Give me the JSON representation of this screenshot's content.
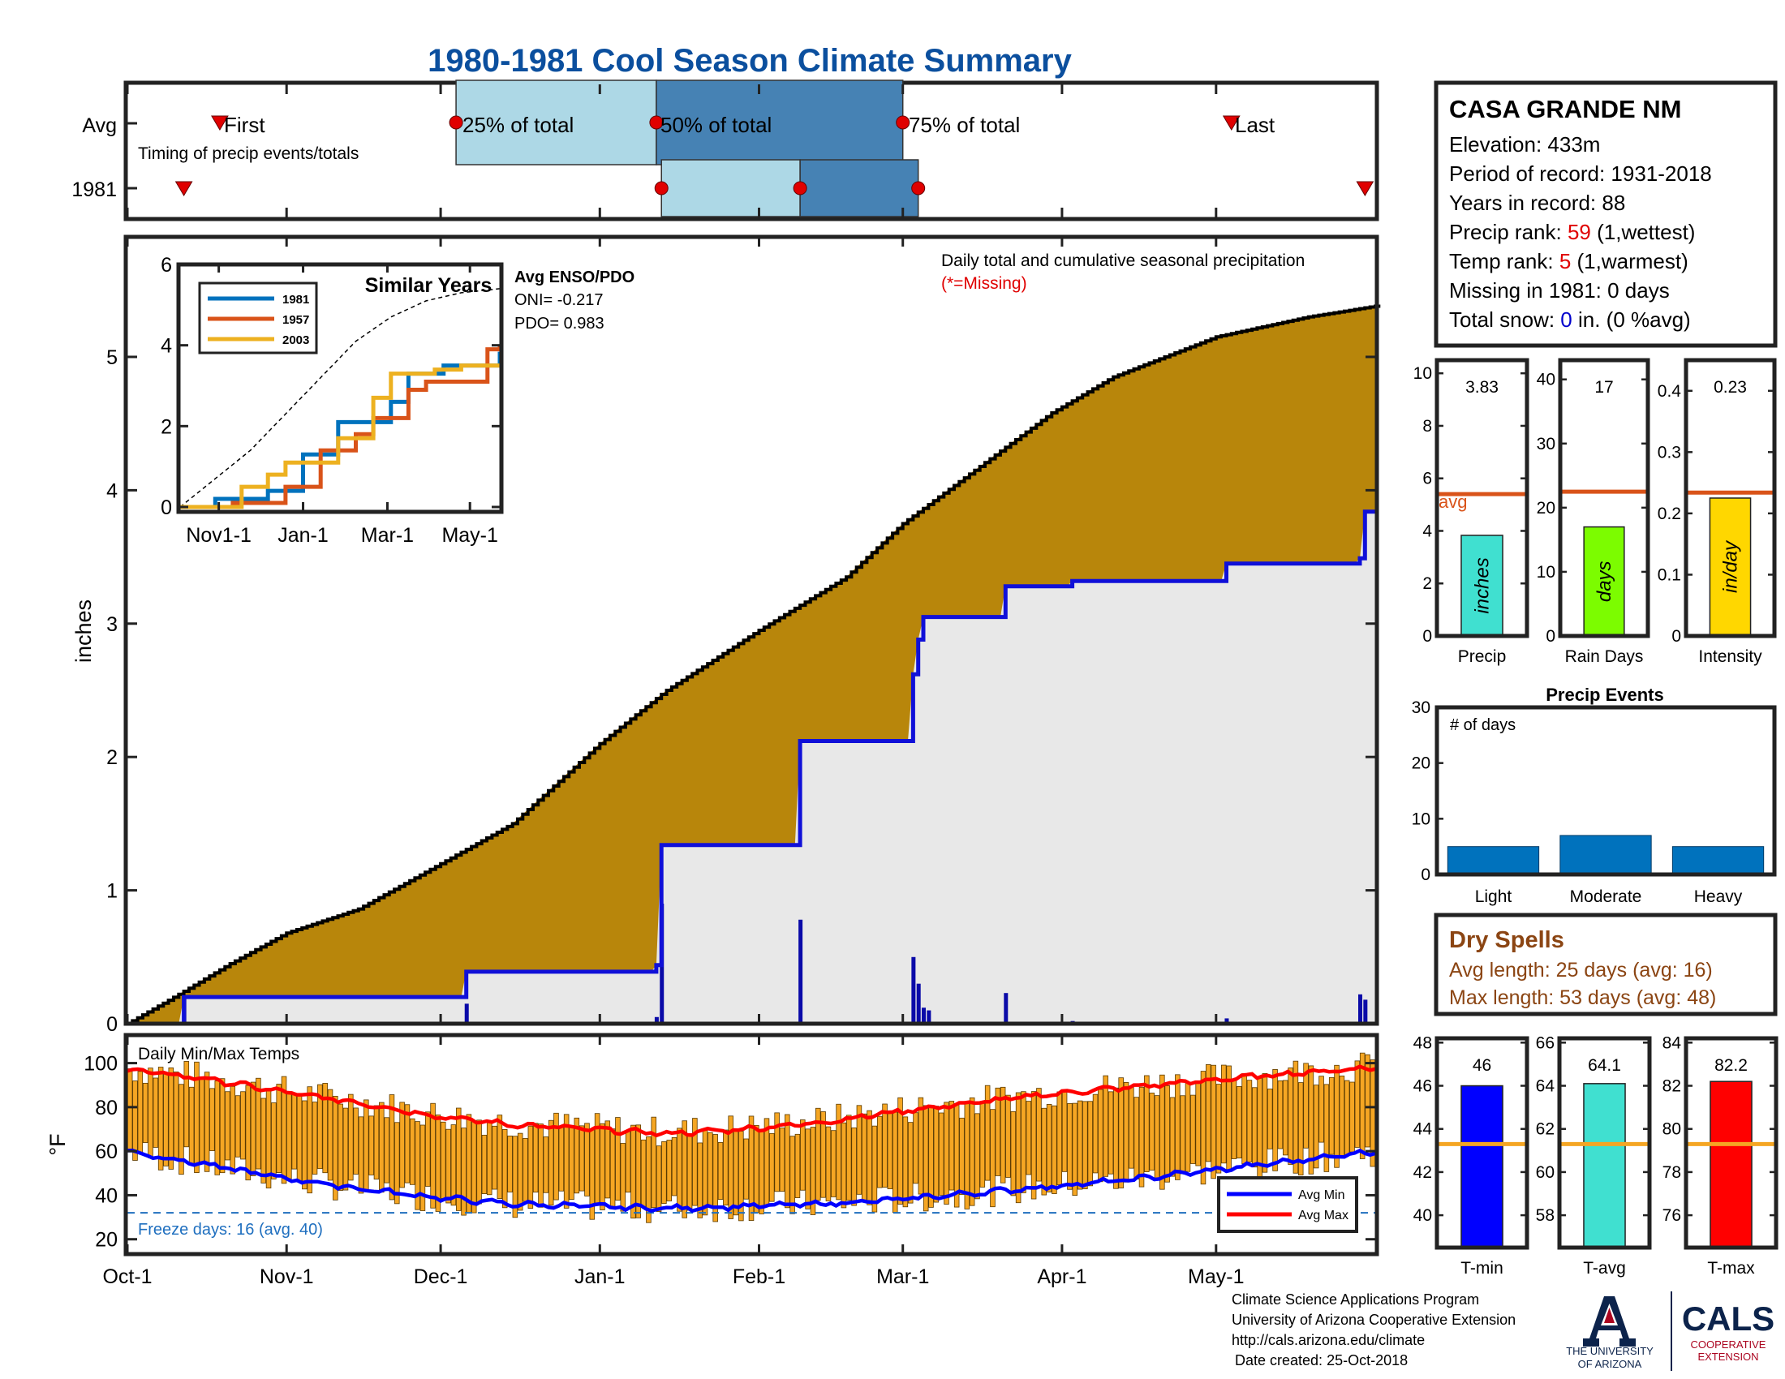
{
  "title": "1980-1981 Cool Season Climate Summary",
  "colors": {
    "title": "#0b4f9e",
    "cum_total": "#b8860b",
    "cum_missing_bg": "#e8e8e8",
    "line_blue": "#1010d8",
    "box_light": "#add8e6",
    "box_dark": "#4682b4",
    "marker_red": "#e00000",
    "avg_line": "#d95319",
    "bar_precip": "#40e0d0",
    "bar_raindays": "#7cfc00",
    "bar_intensity": "#ffd700",
    "bar_events": "#0072bd",
    "temp_bar": "#f5a623",
    "tmin": "#0000ff",
    "tavg": "#40e0d0",
    "tmax": "#ff0000",
    "temp_avg_line": "#f5a623",
    "dryspell_text": "#8b4513",
    "rank_red": "#e00000",
    "snow_blue": "#0000cc"
  },
  "station": {
    "name": "CASA GRANDE NM",
    "elevation": "Elevation: 433m",
    "period": "Period of record: 1931-2018",
    "years": "Years in record: 88",
    "precip_rank_label": "Precip rank: ",
    "precip_rank_value": "59",
    "precip_rank_suffix": " (1,wettest)",
    "temp_rank_label": "Temp rank: ",
    "temp_rank_value": "5",
    "temp_rank_suffix": " (1,warmest)",
    "missing": "Missing in 1981: 0 days",
    "snow_label": "Total snow: ",
    "snow_value": "0",
    "snow_suffix": " in. (0 %avg)"
  },
  "timing": {
    "row_avg": "Avg",
    "row_year": "1981",
    "caption": "Timing of precip events/totals",
    "first": "First",
    "p25": "25% of total",
    "p50": "50% of total",
    "p75": "75% of total",
    "last": "Last"
  },
  "main_plot": {
    "ylabel": "inches",
    "note": "Daily total and cumulative seasonal precipitation",
    "missing_note": "(*=Missing)",
    "y_ticks": [
      "0",
      "1",
      "2",
      "3",
      "4",
      "5"
    ]
  },
  "inset": {
    "title": "Similar Years",
    "enso_title": "Avg ENSO/PDO",
    "oni": "ONI= -0.217",
    "pdo": "PDO= 0.983",
    "y_ticks": [
      "0",
      "2",
      "4",
      "6"
    ],
    "x_ticks": [
      "Nov1-1",
      "Jan-1",
      "Mar-1",
      "May-1"
    ],
    "legend": [
      "1981",
      "1957",
      "2003"
    ]
  },
  "temps_plot": {
    "ylabel": "°F",
    "title": "Daily Min/Max Temps",
    "freeze": "Freeze days: 16 (avg. 40)",
    "legend_min": "Avg Min",
    "legend_max": "Avg Max",
    "y_ticks": [
      "20",
      "40",
      "60",
      "80",
      "100"
    ]
  },
  "x_axis": [
    "Oct-1",
    "Nov-1",
    "Dec-1",
    "Jan-1",
    "Feb-1",
    "Mar-1",
    "Apr-1",
    "May-1"
  ],
  "small_bars": {
    "precip": {
      "label": "Precip",
      "value_label": "3.83",
      "unit": "inches",
      "ticks": [
        "0",
        "2",
        "4",
        "6",
        "8",
        "10"
      ],
      "avg_label": "avg"
    },
    "raindays": {
      "label": "Rain Days",
      "value_label": "17",
      "unit": "days",
      "ticks": [
        "0",
        "10",
        "20",
        "30",
        "40"
      ]
    },
    "intensity": {
      "label": "Intensity",
      "value_label": "0.23",
      "unit": "in/day",
      "ticks": [
        "0",
        "0.1",
        "0.2",
        "0.3",
        "0.4"
      ]
    }
  },
  "events": {
    "title": "Precip Events",
    "sublabel": "# of days",
    "categories": [
      "Light",
      "Moderate",
      "Heavy"
    ],
    "ticks": [
      "0",
      "10",
      "20",
      "30"
    ]
  },
  "dry_spells": {
    "title": "Dry Spells",
    "avg": "Avg length: 25 days (avg: 16)",
    "max": "Max length: 53 days (avg: 48)"
  },
  "temp_bars": {
    "tmin": {
      "label": "T-min",
      "value_label": "46",
      "ticks": [
        "40",
        "42",
        "44",
        "46",
        "48"
      ]
    },
    "tavg": {
      "label": "T-avg",
      "value_label": "64.1",
      "ticks": [
        "58",
        "60",
        "62",
        "64",
        "66"
      ]
    },
    "tmax": {
      "label": "T-max",
      "value_label": "82.2",
      "ticks": [
        "76",
        "78",
        "80",
        "82",
        "84"
      ]
    }
  },
  "footer": {
    "line1": "Climate Science Applications Program",
    "line2": "University of Arizona Cooperative Extension",
    "line3": "http://cals.arizona.edu/climate",
    "line4": "Date created: 25-Oct-2018",
    "ua_line1": "THE UNIVERSITY",
    "ua_line2": "OF ARIZONA",
    "cals": "CALS",
    "cals_sub1": "COOPERATIVE",
    "cals_sub2": "EXTENSION"
  },
  "chart_data": [
    {
      "type": "area",
      "name": "cumulative precipitation",
      "x_ticks": [
        "Oct-1",
        "Nov-1",
        "Dec-1",
        "Jan-1",
        "Feb-1",
        "Mar-1",
        "Apr-1",
        "May-1"
      ],
      "ylabel": "inches",
      "ylim": [
        0,
        5.9
      ],
      "xlim_days": [
        0,
        243
      ],
      "avg_cumulative": {
        "day": [
          0,
          10,
          20,
          31,
          45,
          61,
          75,
          92,
          105,
          123,
          140,
          151,
          165,
          180,
          192,
          212,
          230,
          243
        ],
        "inches": [
          0,
          0.22,
          0.45,
          0.68,
          0.86,
          1.2,
          1.5,
          2.1,
          2.5,
          2.95,
          3.35,
          3.75,
          4.15,
          4.58,
          4.85,
          5.15,
          5.3,
          5.38
        ]
      },
      "cumulative_1981": {
        "day": [
          0,
          11,
          66,
          103,
          104,
          131,
          153,
          154,
          155,
          156,
          171,
          184,
          214,
          240,
          241,
          243
        ],
        "inches": [
          0,
          0.2,
          0.39,
          0.44,
          1.34,
          2.12,
          2.62,
          2.88,
          3.05,
          3.05,
          3.28,
          3.32,
          3.45,
          3.49,
          3.84,
          3.84
        ]
      },
      "daily_1981": {
        "day": [
          11,
          66,
          103,
          104,
          131,
          153,
          154,
          155,
          156,
          171,
          184,
          214,
          240,
          241
        ],
        "inches": [
          0.2,
          0.15,
          0.05,
          0.9,
          0.78,
          0.5,
          0.3,
          0.12,
          0.1,
          0.23,
          0.02,
          0.04,
          0.22,
          0.18
        ]
      }
    },
    {
      "type": "line",
      "name": "similar years",
      "series": [
        {
          "name": "1981",
          "x": [
            0,
            20,
            40,
            50,
            60,
            70,
            80,
            90,
            110,
            120,
            130,
            140,
            150,
            160,
            182
          ],
          "y": [
            0,
            0.2,
            0.2,
            0.4,
            0.4,
            1.3,
            1.3,
            2.1,
            2.1,
            2.6,
            3.3,
            3.3,
            3.5,
            3.5,
            3.84
          ]
        },
        {
          "name": "1957",
          "x": [
            0,
            30,
            45,
            60,
            70,
            80,
            90,
            100,
            110,
            120,
            130,
            140,
            150,
            160,
            175,
            182
          ],
          "y": [
            0,
            0.1,
            0.1,
            0.5,
            0.5,
            1.4,
            1.4,
            1.8,
            2.2,
            2.2,
            2.9,
            3.1,
            3.1,
            3.1,
            3.9,
            4.0
          ]
        },
        {
          "name": "2003",
          "x": [
            0,
            25,
            35,
            50,
            60,
            75,
            90,
            100,
            110,
            120,
            130,
            145,
            160,
            182
          ],
          "y": [
            0,
            0.0,
            0.5,
            0.8,
            1.1,
            1.1,
            1.7,
            1.7,
            2.7,
            3.3,
            3.3,
            3.4,
            3.5,
            3.5
          ]
        }
      ],
      "avg": {
        "x": [
          0,
          20,
          40,
          60,
          80,
          100,
          120,
          140,
          160,
          182
        ],
        "y": [
          0,
          0.7,
          1.4,
          2.3,
          3.2,
          4.1,
          4.7,
          5.1,
          5.3,
          5.4
        ]
      },
      "ylim": [
        0,
        6
      ]
    },
    {
      "type": "bar",
      "name": "timing",
      "categories": [
        "Avg",
        "1981"
      ],
      "avg": {
        "first": 18,
        "p25": 64,
        "p50": 103,
        "p75": 151,
        "last": 215
      },
      "year_1981": {
        "first": 11,
        "p25": 104,
        "p50": 131,
        "p75": 154,
        "last": 241
      }
    },
    {
      "type": "bar",
      "name": "precip",
      "value": 3.83,
      "avg": 5.4,
      "ylim": [
        0,
        10.5
      ]
    },
    {
      "type": "bar",
      "name": "rain days",
      "value": 17,
      "avg": 22.5,
      "ylim": [
        0,
        43
      ]
    },
    {
      "type": "bar",
      "name": "intensity",
      "value": 0.225,
      "avg": 0.234,
      "ylim": [
        0,
        0.45
      ]
    },
    {
      "type": "bar",
      "name": "precip events",
      "categories": [
        "Light",
        "Moderate",
        "Heavy"
      ],
      "values": [
        5,
        7,
        5
      ],
      "ylim": [
        0,
        30
      ]
    },
    {
      "type": "bar",
      "name": "temps",
      "categories": [
        "T-min",
        "T-avg",
        "T-max"
      ],
      "values": [
        46,
        64.1,
        82.2
      ],
      "avgs": [
        43.3,
        61.3,
        79.3
      ],
      "ylims": [
        [
          38.5,
          48.2
        ],
        [
          56.5,
          66.2
        ],
        [
          74.5,
          84.2
        ]
      ]
    },
    {
      "type": "line",
      "name": "daily temps",
      "ylabel": "°F",
      "ylim": [
        14,
        112
      ],
      "freeze_line": 32,
      "avg_max": {
        "day": [
          0,
          15,
          30,
          45,
          60,
          75,
          90,
          105,
          120,
          135,
          150,
          165,
          180,
          195,
          210,
          225,
          243
        ],
        "y": [
          97,
          93,
          87,
          82,
          76,
          72,
          70,
          68,
          70,
          73,
          78,
          82,
          86,
          89,
          92,
          95,
          98
        ]
      },
      "avg_min": {
        "day": [
          0,
          15,
          30,
          45,
          60,
          75,
          90,
          105,
          120,
          135,
          150,
          165,
          180,
          195,
          210,
          225,
          243
        ],
        "y": [
          60,
          54,
          48,
          43,
          39,
          36,
          35,
          34,
          35,
          36,
          38,
          41,
          44,
          47,
          51,
          55,
          60
        ]
      }
    }
  ]
}
